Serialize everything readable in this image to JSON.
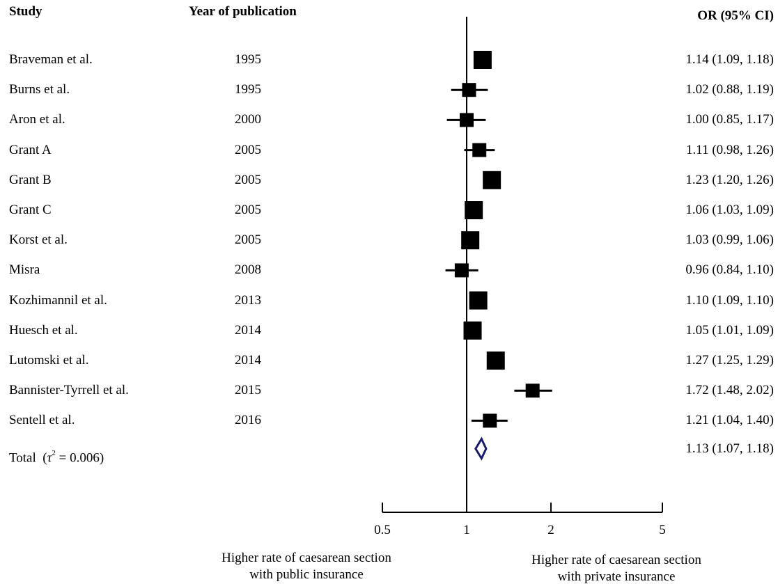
{
  "headers": {
    "study": "Study",
    "year": "Year of publication",
    "or": "OR (95% CI)"
  },
  "chart_data": {
    "type": "forest",
    "x_scale": "log",
    "null_line": 1,
    "x_ticks": [
      0.5,
      1,
      2,
      5
    ],
    "x_tick_labels": [
      "0.5",
      "1",
      "2",
      "5"
    ],
    "xlim": [
      0.5,
      5
    ],
    "studies": [
      {
        "name": "Braveman et al.",
        "year": "1995",
        "or": 1.14,
        "lo": 1.09,
        "hi": 1.18,
        "or_text": "1.14 (1.09, 1.18)"
      },
      {
        "name": "Burns et al.",
        "year": "1995",
        "or": 1.02,
        "lo": 0.88,
        "hi": 1.19,
        "or_text": "1.02 (0.88, 1.19)"
      },
      {
        "name": "Aron et al.",
        "year": "2000",
        "or": 1.0,
        "lo": 0.85,
        "hi": 1.17,
        "or_text": "1.00 (0.85, 1.17)"
      },
      {
        "name": "Grant A",
        "year": "2005",
        "or": 1.11,
        "lo": 0.98,
        "hi": 1.26,
        "or_text": "1.11 (0.98, 1.26)"
      },
      {
        "name": "Grant B",
        "year": "2005",
        "or": 1.23,
        "lo": 1.2,
        "hi": 1.26,
        "or_text": "1.23 (1.20, 1.26)"
      },
      {
        "name": "Grant C",
        "year": "2005",
        "or": 1.06,
        "lo": 1.03,
        "hi": 1.09,
        "or_text": "1.06 (1.03, 1.09)"
      },
      {
        "name": "Korst et al.",
        "year": "2005",
        "or": 1.03,
        "lo": 0.99,
        "hi": 1.06,
        "or_text": "1.03 (0.99, 1.06)"
      },
      {
        "name": "Misra",
        "year": "2008",
        "or": 0.96,
        "lo": 0.84,
        "hi": 1.1,
        "or_text": "0.96 (0.84, 1.10)"
      },
      {
        "name": "Kozhimannil et al.",
        "year": "2013",
        "or": 1.1,
        "lo": 1.09,
        "hi": 1.1,
        "or_text": "1.10 (1.09, 1.10)"
      },
      {
        "name": "Huesch et al.",
        "year": "2014",
        "or": 1.05,
        "lo": 1.01,
        "hi": 1.09,
        "or_text": "1.05 (1.01, 1.09)"
      },
      {
        "name": "Lutomski et al.",
        "year": "2014",
        "or": 1.27,
        "lo": 1.25,
        "hi": 1.29,
        "or_text": "1.27 (1.25, 1.29)"
      },
      {
        "name": "Bannister-Tyrrell et al.",
        "year": "2015",
        "or": 1.72,
        "lo": 1.48,
        "hi": 2.02,
        "or_text": "1.72 (1.48, 2.02)"
      },
      {
        "name": "Sentell et al.",
        "year": "2016",
        "or": 1.21,
        "lo": 1.04,
        "hi": 1.4,
        "or_text": "1.21 (1.04, 1.40)"
      }
    ],
    "total": {
      "label_prefix": "Total  (",
      "tau_symbol": "τ",
      "tau_exp": "2",
      "label_suffix": " = 0.006)",
      "or": 1.13,
      "lo": 1.07,
      "hi": 1.18,
      "or_text": "1.13 (1.07, 1.18)",
      "color": "#1a1a6e"
    },
    "footer_left": [
      "Higher rate of caesarean section",
      "with public insurance"
    ],
    "footer_right": [
      "Higher rate of caesarean section",
      "with private insurance"
    ],
    "marker_color": "#000000"
  }
}
